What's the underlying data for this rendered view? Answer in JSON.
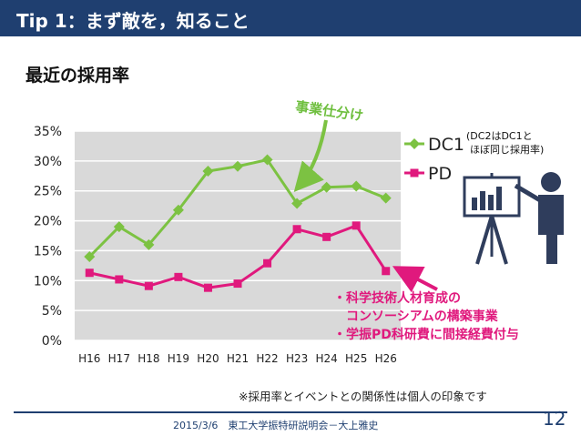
{
  "header": {
    "title": "Tip 1：まず敵を，知ること"
  },
  "subtitle": "最近の採用率",
  "annotations": {
    "top": "事業仕分け",
    "legend_note_1": "(DC2はDC1と",
    "legend_note_2": "ほぼ同じ採用率)",
    "bottom": [
      "・科学技術人材育成の",
      "　コンソーシアムの構築事業",
      "・学振PD科研費に間接経費付与"
    ]
  },
  "footnote": "※採用率とイベントとの関係性は個人の印象です",
  "footer": {
    "text": "2015/3/6　東工大学振特研説明会－大上雅史",
    "page": "12"
  },
  "colors": {
    "header": "#1f3f70",
    "dc1": "#7cc242",
    "pd": "#e0197d",
    "plot_bg": "#d9d9d9",
    "icon": "#2f3d5c"
  },
  "icons": [
    "presenter-icon"
  ],
  "chart_data": {
    "type": "line",
    "categories": [
      "H16",
      "H17",
      "H18",
      "H19",
      "H20",
      "H21",
      "H22",
      "H23",
      "H24",
      "H25",
      "H26"
    ],
    "series": [
      {
        "name": "DC1",
        "values": [
          14.0,
          19.0,
          16.0,
          21.8,
          28.3,
          29.1,
          30.2,
          22.9,
          25.6,
          25.8,
          23.8
        ]
      },
      {
        "name": "PD",
        "values": [
          11.3,
          10.2,
          9.1,
          10.6,
          8.8,
          9.5,
          12.9,
          18.6,
          17.3,
          19.2,
          11.6
        ]
      }
    ],
    "yticks": [
      "0%",
      "5%",
      "10%",
      "15%",
      "20%",
      "25%",
      "30%",
      "35%"
    ],
    "ylim": [
      0,
      35
    ],
    "grid": true,
    "legend": "right"
  }
}
